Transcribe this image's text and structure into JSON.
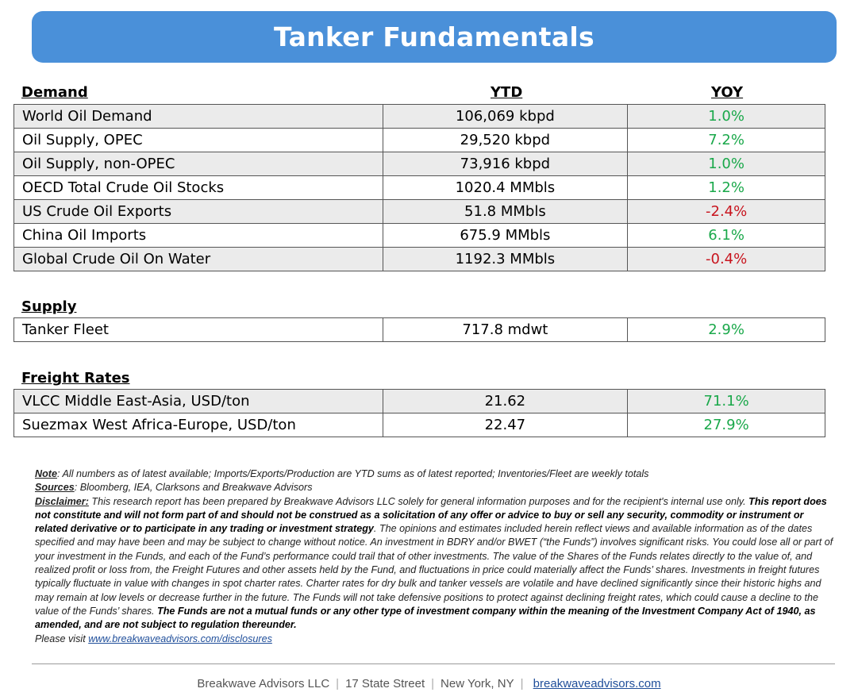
{
  "title": "Tanker Fundamentals",
  "demand": {
    "heading": "Demand",
    "col_ytd": "YTD",
    "col_yoy": "YOY",
    "rows": [
      {
        "label": "World Oil Demand",
        "ytd": "106,069 kbpd",
        "yoy": "1.0%"
      },
      {
        "label": "Oil Supply, OPEC",
        "ytd": "29,520 kbpd",
        "yoy": "7.2%"
      },
      {
        "label": "Oil Supply, non-OPEC",
        "ytd": "73,916 kbpd",
        "yoy": "1.0%"
      },
      {
        "label": "OECD Total Crude Oil Stocks",
        "ytd": "1020.4 MMbls",
        "yoy": "1.2%"
      },
      {
        "label": "US Crude Oil Exports",
        "ytd": "51.8 MMbls",
        "yoy": "-2.4%"
      },
      {
        "label": "China Oil Imports",
        "ytd": "675.9 MMbls",
        "yoy": "6.1%"
      },
      {
        "label": "Global Crude Oil On Water",
        "ytd": "1192.3 MMbls",
        "yoy": "-0.4%"
      }
    ]
  },
  "supply": {
    "heading": "Supply",
    "rows": [
      {
        "label": "Tanker Fleet",
        "ytd": "717.8 mdwt",
        "yoy": "2.9%"
      }
    ]
  },
  "freight": {
    "heading": "Freight Rates",
    "rows": [
      {
        "label": "VLCC Middle East-Asia, USD/ton",
        "ytd": "21.62",
        "yoy": "71.1%"
      },
      {
        "label": "Suezmax West Africa-Europe, USD/ton",
        "ytd": "22.47",
        "yoy": "27.9%"
      }
    ]
  },
  "notes": {
    "note_label": "Note",
    "note_text": ": All numbers as of latest available; Imports/Exports/Production are YTD sums as of latest reported; Inventories/Fleet are weekly totals",
    "sources_label": "Sources",
    "sources_text": ": Bloomberg, IEA, Clarksons and Breakwave Advisors",
    "disclaimer_label": "Disclaimer:",
    "disclaimer_text1": " This research report has been prepared by Breakwave Advisors LLC solely for general information purposes and for the recipient's internal use only.",
    "disclaimer_bold1": "This report does not constitute and will not form part of and should not be construed as a solicitation of any offer or advice to buy or sell any security, commodity or instrument or related derivative or to participate in any trading or investment strategy",
    "disclaimer_text2": ". The opinions and estimates included herein reflect views and available information as of the dates specified and may have been and may be subject to change without notice. An investment in BDRY and/or BWET (“the Funds”) involves significant risks. You could lose all or part of your investment in the Funds, and each of the Fund’s performance could trail that of other investments. The value of the Shares of the Funds relates directly to the value of, and realized profit or loss from, the Freight Futures and other assets held by the Fund, and fluctuations in price could materially affect the Funds’ shares. Investments in freight futures typically fluctuate in value with changes in spot charter rates. Charter rates for dry bulk and tanker vessels are volatile and have declined significantly since their historic highs and may remain at low levels or decrease further in the future. The Funds will not take defensive positions to protect against declining freight rates, which could cause a decline to the value of the Funds’ shares.",
    "disclaimer_bold2": "The Funds are not a mutual funds or any other type of investment company within the meaning of the Investment Company Act of 1940, as amended, and are not subject to regulation thereunder.",
    "visit_text": "Please visit ",
    "visit_link": "www.breakwaveadvisors.com/disclosures"
  },
  "footer": {
    "company": "Breakwave Advisors LLC",
    "address": "17 State Street",
    "city": "New York, NY",
    "website": "breakwaveadvisors.com"
  },
  "colors": {
    "banner": "#4a90d9",
    "positive": "#1aa84a",
    "negative": "#c8141e"
  }
}
